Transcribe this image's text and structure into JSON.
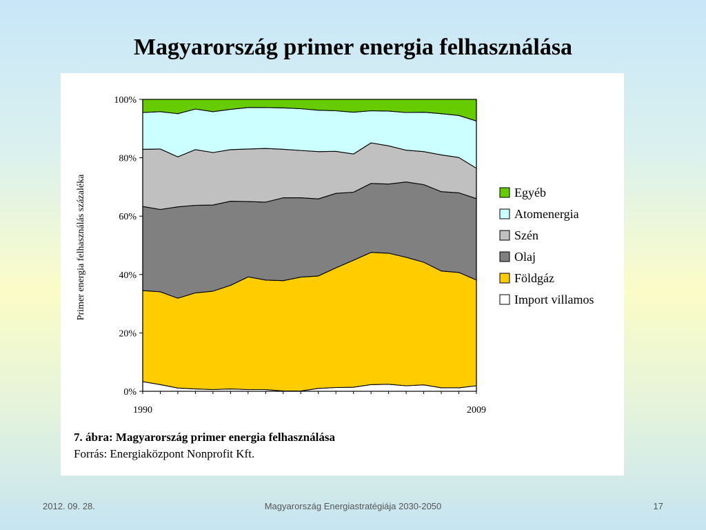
{
  "slide": {
    "title": "Magyarország primer energia felhasználása",
    "footer_date": "2012. 09. 28.",
    "footer_center": "Magyarország Energiastratégiája 2030-2050",
    "page_number": "17"
  },
  "figure": {
    "caption_title": "7. ábra: Magyarország primer energia felhasználása",
    "caption_source": "Forrás: Energiaközpont Nonprofit Kft."
  },
  "chart_data": {
    "type": "area",
    "stacked": true,
    "ylabel": "Primer energia felhasználás százaléka",
    "xlabel": "",
    "x": [
      1990,
      1991,
      1992,
      1993,
      1994,
      1995,
      1996,
      1997,
      1998,
      1999,
      2000,
      2001,
      2002,
      2003,
      2004,
      2005,
      2006,
      2007,
      2008,
      2009
    ],
    "x_tick_labels": [
      "1990",
      "2009"
    ],
    "y_ticks": [
      0,
      20,
      40,
      60,
      80,
      100
    ],
    "y_tick_labels": [
      "0%",
      "20%",
      "40%",
      "60%",
      "80%",
      "100%"
    ],
    "ylim": [
      0,
      100
    ],
    "legend_position": "right",
    "series": [
      {
        "name": "Import villamos",
        "color": "#ffffff",
        "values": [
          3.3,
          2.3,
          1.1,
          0.8,
          0.6,
          0.8,
          0.6,
          0.6,
          0.1,
          0.1,
          1.0,
          1.3,
          1.4,
          2.3,
          2.4,
          1.9,
          2.2,
          1.2,
          1.2,
          1.9
        ]
      },
      {
        "name": "Földgáz",
        "color": "#ffcc00",
        "values": [
          31.2,
          31.8,
          30.8,
          32.9,
          33.7,
          35.5,
          38.6,
          37.5,
          37.8,
          39.0,
          38.5,
          41.0,
          43.5,
          45.3,
          44.9,
          44.0,
          42.0,
          40.0,
          39.5,
          36.2
        ]
      },
      {
        "name": "Olaj",
        "color": "#808080",
        "values": [
          28.8,
          28.2,
          31.3,
          30.0,
          29.5,
          28.8,
          25.8,
          26.7,
          28.4,
          27.2,
          26.4,
          25.5,
          23.3,
          23.6,
          23.7,
          25.8,
          26.6,
          27.2,
          27.3,
          27.9
        ]
      },
      {
        "name": "Szén",
        "color": "#c0c0c0",
        "values": [
          19.6,
          20.7,
          17.1,
          19.1,
          18.0,
          17.7,
          18.0,
          18.4,
          16.6,
          16.2,
          16.2,
          14.4,
          13.1,
          13.9,
          13.1,
          10.9,
          11.3,
          12.6,
          12.1,
          10.4
        ]
      },
      {
        "name": "Atomenergia",
        "color": "#ccffff",
        "values": [
          12.6,
          12.8,
          14.8,
          13.9,
          14.0,
          13.8,
          14.2,
          14.0,
          14.2,
          14.3,
          14.2,
          13.9,
          14.3,
          11.0,
          11.9,
          12.9,
          13.5,
          14.1,
          14.4,
          16.2
        ]
      },
      {
        "name": "Egyéb",
        "color": "#66cc00",
        "values": [
          4.5,
          4.2,
          4.9,
          3.3,
          4.2,
          3.4,
          2.8,
          2.8,
          2.9,
          3.2,
          3.7,
          3.9,
          4.4,
          3.9,
          4.0,
          4.5,
          4.4,
          4.9,
          5.5,
          7.4
        ]
      }
    ],
    "legend_order": [
      "Egyéb",
      "Atomenergia",
      "Szén",
      "Olaj",
      "Földgáz",
      "Import villamos"
    ]
  }
}
